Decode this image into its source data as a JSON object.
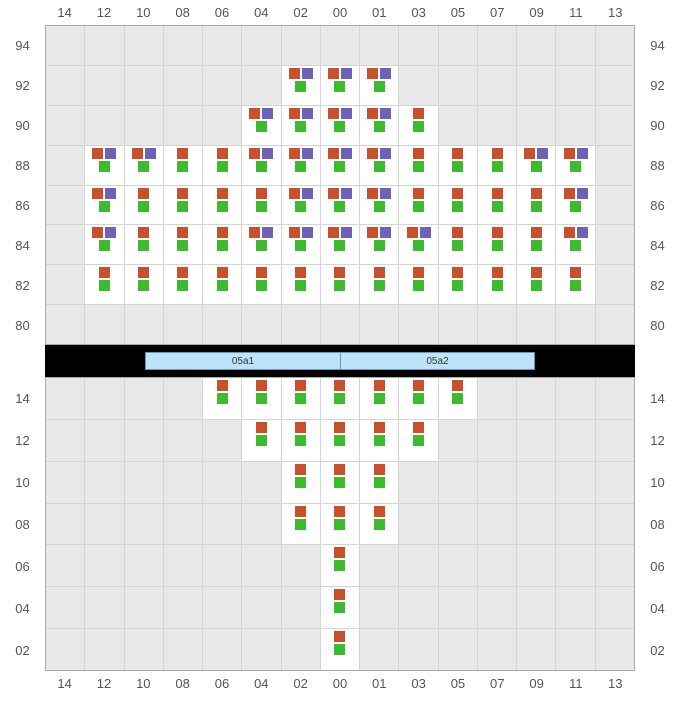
{
  "colors": {
    "orange": "#c8502a",
    "purple": "#6d61b8",
    "green": "#3dbb2f",
    "grid_bg": "#e8e8e8",
    "cell_bg": "#ffffff",
    "midbar_bg": "#000000",
    "label_bg": "#bfe4f9",
    "label_border": "#5a9bc4"
  },
  "columns": [
    "14",
    "12",
    "10",
    "08",
    "06",
    "04",
    "02",
    "00",
    "01",
    "03",
    "05",
    "07",
    "09",
    "11",
    "13"
  ],
  "top_panel": {
    "rows": [
      "94",
      "92",
      "90",
      "88",
      "86",
      "84",
      "82",
      "80"
    ],
    "cells": {
      "92": {
        "02": "A",
        "00": "A",
        "01": "A"
      },
      "90": {
        "04": "A",
        "02": "A",
        "00": "A",
        "01": "A",
        "03": "B"
      },
      "88": {
        "12": "A",
        "10": "A",
        "08": "B",
        "06": "B",
        "04": "A",
        "02": "A",
        "00": "A",
        "01": "A",
        "03": "B",
        "05": "B",
        "07": "B",
        "09": "A",
        "11": "A"
      },
      "86": {
        "12": "A",
        "10": "B",
        "08": "B",
        "06": "B",
        "04": "B",
        "02": "A",
        "00": "A",
        "01": "A",
        "03": "B",
        "05": "B",
        "07": "B",
        "09": "B",
        "11": "A"
      },
      "84": {
        "12": "A",
        "10": "B",
        "08": "B",
        "06": "B",
        "04": "A",
        "02": "A",
        "00": "A",
        "01": "A",
        "03": "A",
        "05": "B",
        "07": "B",
        "09": "B",
        "11": "A"
      },
      "82": {
        "12": "C",
        "10": "C",
        "08": "C",
        "06": "C",
        "04": "C",
        "02": "C",
        "00": "C",
        "01": "C",
        "03": "C",
        "05": "C",
        "07": "C",
        "09": "C",
        "11": "C"
      }
    }
  },
  "mid_labels": [
    "05a1",
    "05a2"
  ],
  "bottom_panel": {
    "rows": [
      "14",
      "12",
      "10",
      "08",
      "06",
      "04",
      "02"
    ],
    "cells": {
      "14": {
        "06": "C",
        "04": "C",
        "02": "C",
        "00": "C",
        "01": "C",
        "03": "C",
        "05": "C"
      },
      "12": {
        "04": "C",
        "02": "C",
        "00": "C",
        "01": "C",
        "03": "C"
      },
      "10": {
        "02": "C",
        "00": "C",
        "01": "C"
      },
      "08": {
        "02": "C",
        "00": "C",
        "01": "C"
      },
      "06": {
        "00": "C"
      },
      "04": {
        "00": "C"
      },
      "02": {
        "00": "C"
      }
    }
  },
  "patterns": {
    "A": {
      "top": [
        "orange",
        "purple"
      ],
      "bottom": [
        "green"
      ]
    },
    "B": {
      "top": [
        "orange"
      ],
      "bottom": [
        "green"
      ]
    },
    "C": {
      "top": [
        "orange"
      ],
      "bottom": [
        "green"
      ]
    }
  }
}
